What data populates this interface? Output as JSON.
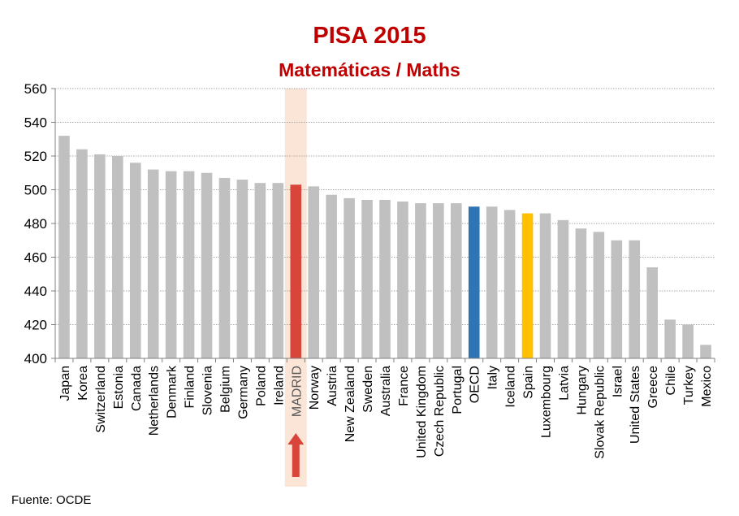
{
  "chart_data": {
    "type": "bar",
    "title": "PISA 2015",
    "subtitle": "Matemáticas / Maths",
    "ylim": [
      400,
      560
    ],
    "yticks": [
      400,
      420,
      440,
      460,
      480,
      500,
      520,
      540,
      560
    ],
    "grid": true,
    "categories": [
      "Japan",
      "Korea",
      "Switzerland",
      "Estonia",
      "Canada",
      "Netherlands",
      "Denmark",
      "Finland",
      "Slovenia",
      "Belgium",
      "Germany",
      "Poland",
      "Ireland",
      "MADRID",
      "Norway",
      "Austria",
      "New Zealand",
      "Sweden",
      "Australia",
      "France",
      "United Kingdom",
      "Czech Republic",
      "Portugal",
      "OECD",
      "Italy",
      "Iceland",
      "Spain",
      "Luxembourg",
      "Latvia",
      "Hungary",
      "Slovak Republic",
      "Israel",
      "United States",
      "Greece",
      "Chile",
      "Turkey",
      "Mexico"
    ],
    "values": [
      532,
      524,
      521,
      520,
      516,
      512,
      511,
      511,
      510,
      507,
      506,
      504,
      504,
      503,
      502,
      497,
      495,
      494,
      494,
      493,
      492,
      492,
      492,
      490,
      490,
      488,
      486,
      486,
      482,
      477,
      475,
      470,
      470,
      454,
      423,
      420,
      408
    ],
    "highlight": {
      "MADRID": "#d9453b",
      "OECD": "#2e75b6",
      "Spain": "#ffc000"
    },
    "default_color": "#c0c0c0",
    "highlight_band_color": "#fbe5d6",
    "arrow_color": "#d9453b"
  },
  "footer": {
    "source": "Fuente: OCDE"
  }
}
